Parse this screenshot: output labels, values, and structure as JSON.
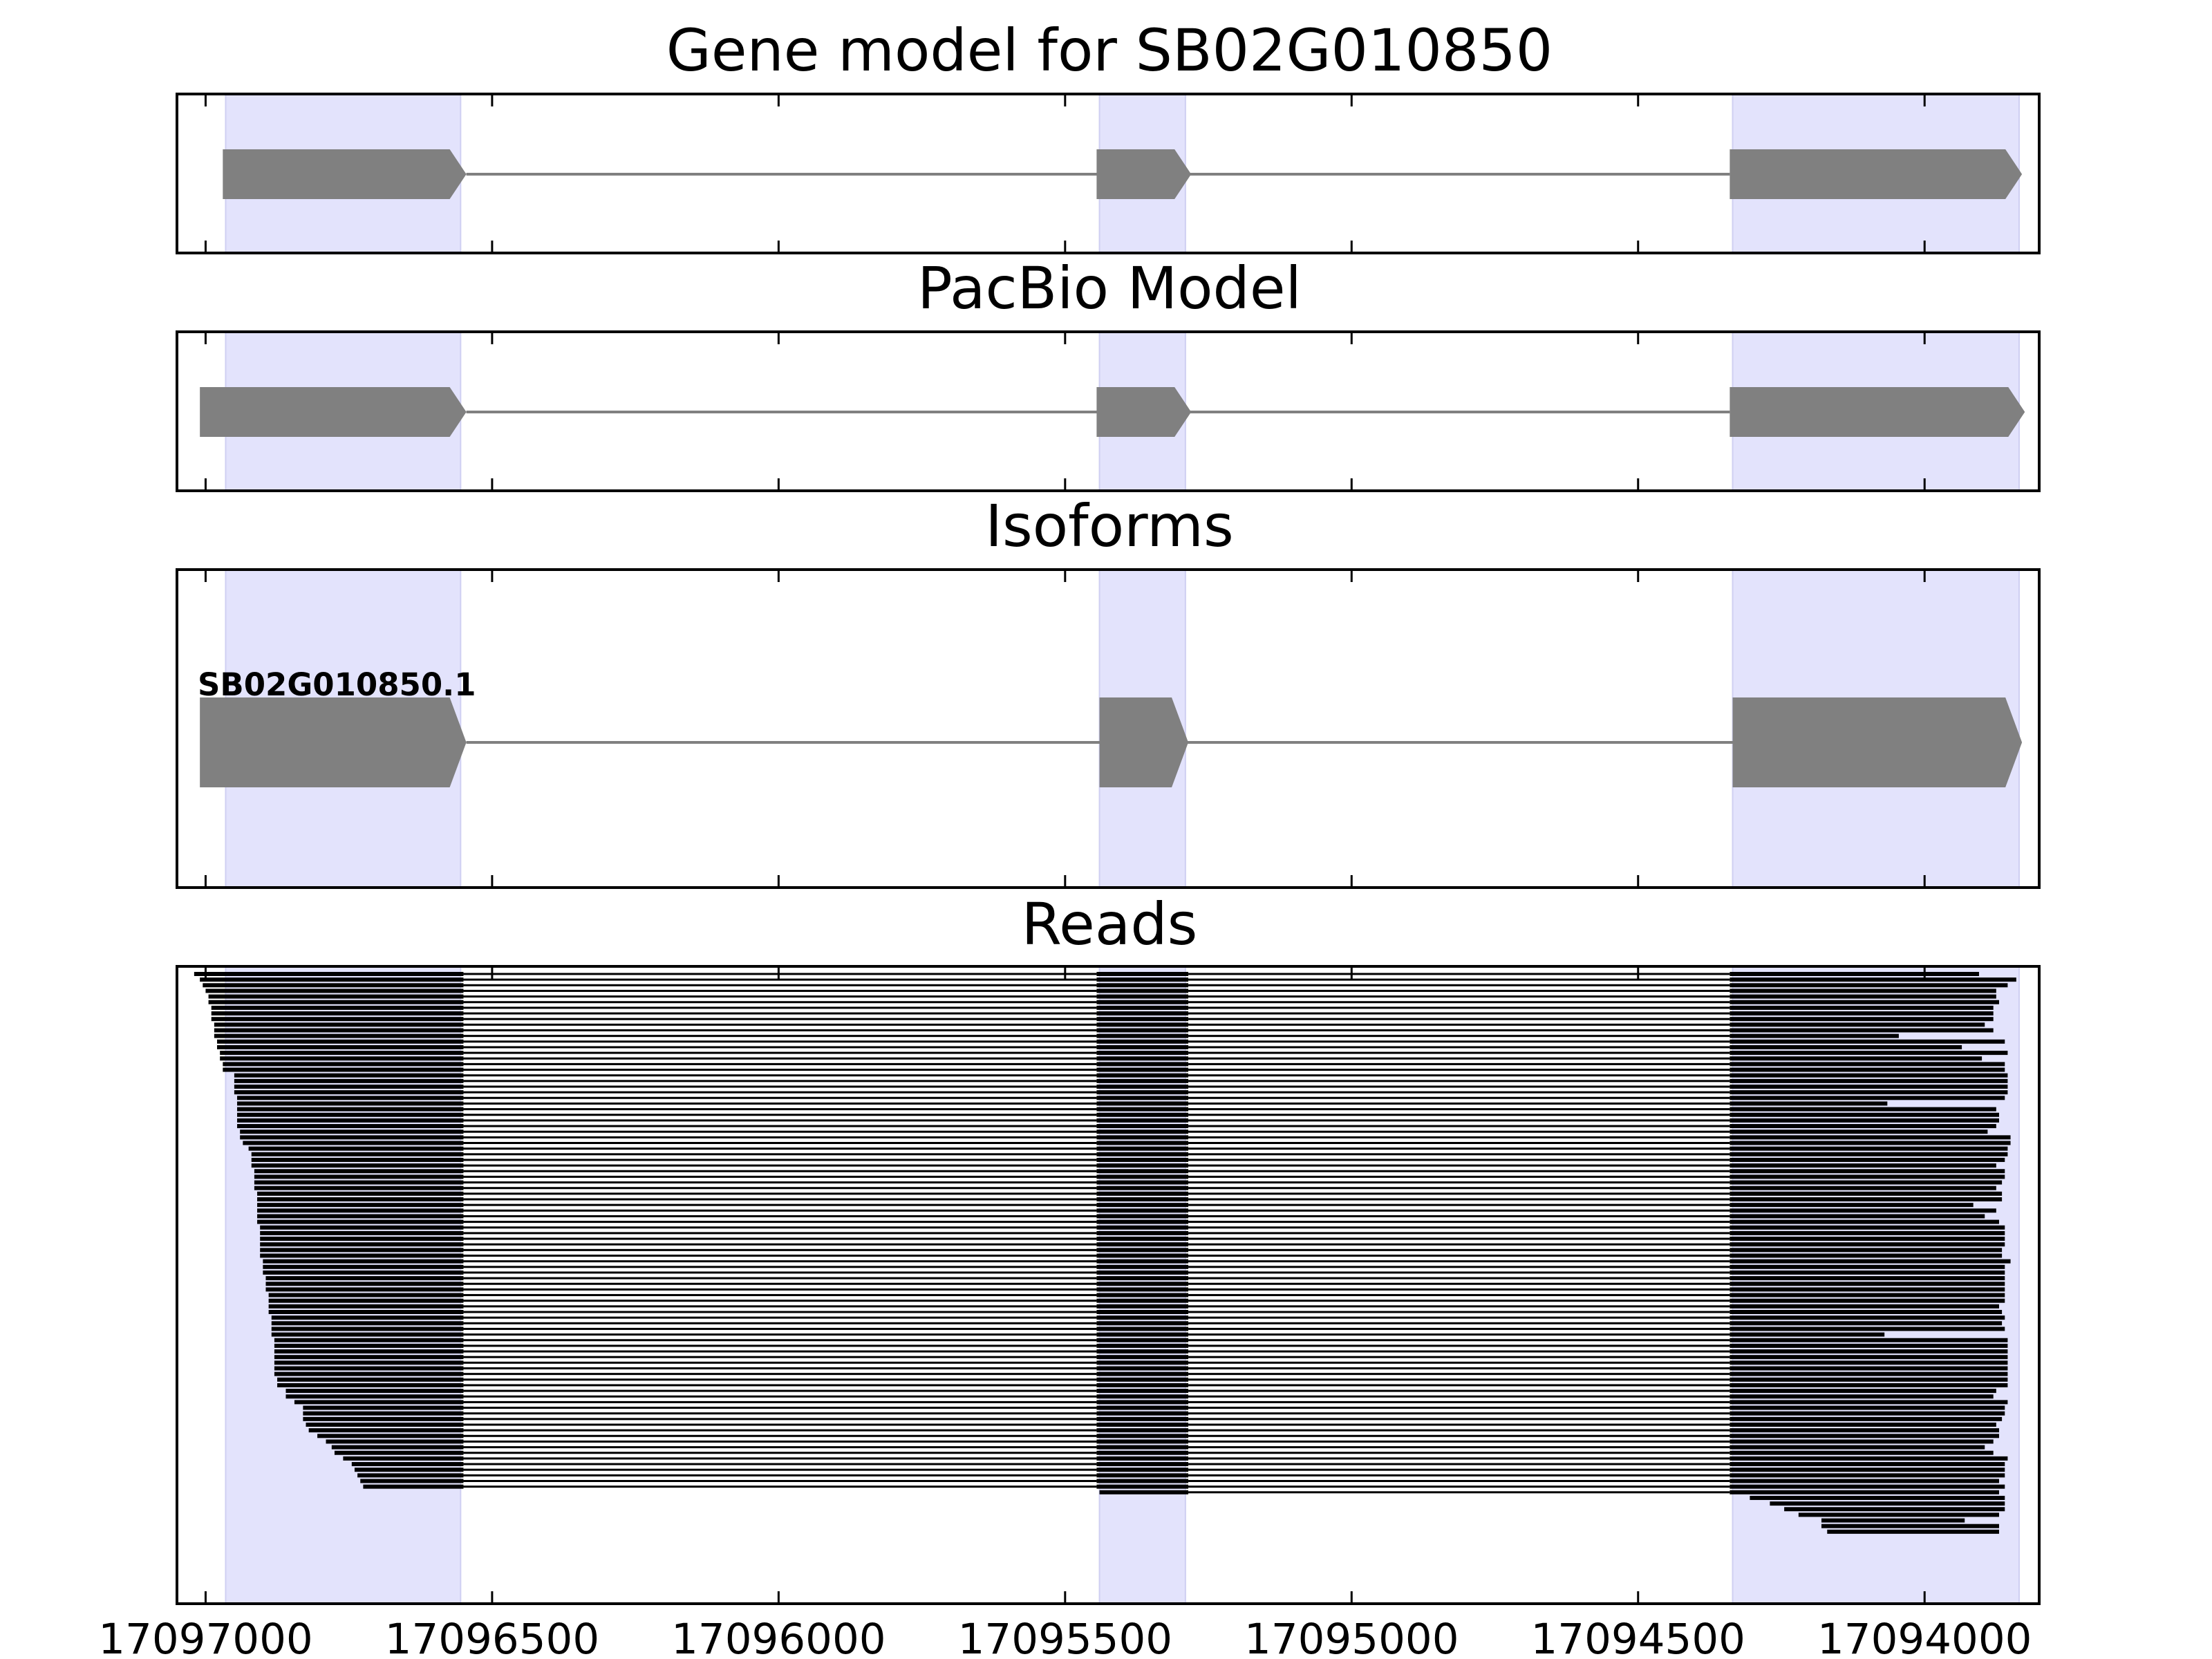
{
  "chart_data": {
    "type": "gene-model-tracks",
    "x_axis": {
      "range": [
        17097050,
        17093800
      ],
      "reversed": true,
      "ticks": [
        17097000,
        17096500,
        17096000,
        17095500,
        17095000,
        17094500,
        17094000
      ],
      "tick_labels": [
        "17097000",
        "17096500",
        "17096000",
        "17095500",
        "17095000",
        "17094500",
        "17094000"
      ]
    },
    "exon_highlights": [
      {
        "start": 17096965,
        "end": 17096555
      },
      {
        "start": 17095440,
        "end": 17095290
      },
      {
        "start": 17094335,
        "end": 17093835
      }
    ],
    "colors": {
      "highlight": "#e3e3fc",
      "exon": "#808080",
      "intron": "#808080",
      "read": "#000000"
    },
    "panels": [
      {
        "title": "Gene model for SB02G010850",
        "exons": [
          {
            "start": 17096970,
            "end": 17096545
          },
          {
            "start": 17095445,
            "end": 17095280
          },
          {
            "start": 17094340,
            "end": 17093830
          }
        ]
      },
      {
        "title": "PacBio Model",
        "exons": [
          {
            "start": 17097010,
            "end": 17096545
          },
          {
            "start": 17095445,
            "end": 17095280
          },
          {
            "start": 17094340,
            "end": 17093825
          }
        ]
      },
      {
        "title": "Isoforms",
        "isoforms": [
          {
            "name": "SB02G010850.1",
            "exons": [
              {
                "start": 17097010,
                "end": 17096545
              },
              {
                "start": 17095440,
                "end": 17095285
              },
              {
                "start": 17094335,
                "end": 17093830
              }
            ]
          }
        ]
      },
      {
        "title": "Reads",
        "exon2": {
          "start": 17095445,
          "end": 17095285
        },
        "exon3_start": 17094340,
        "exon1_end": 17096550,
        "reads": [
          [
            17097020,
            17093905
          ],
          [
            17097010,
            17093840
          ],
          [
            17097005,
            17093855
          ],
          [
            17097000,
            17093875
          ],
          [
            17096995,
            17093875
          ],
          [
            17096995,
            17093870
          ],
          [
            17096990,
            17093880
          ],
          [
            17096990,
            17093880
          ],
          [
            17096990,
            17093880
          ],
          [
            17096985,
            17093895
          ],
          [
            17096985,
            17093880
          ],
          [
            17096985,
            17094045
          ],
          [
            17096980,
            17093860
          ],
          [
            17096980,
            17093935
          ],
          [
            17096975,
            17093855
          ],
          [
            17096975,
            17093900
          ],
          [
            17096970,
            17093860
          ],
          [
            17096970,
            17093860
          ],
          [
            17096950,
            17093855
          ],
          [
            17096950,
            17093855
          ],
          [
            17096950,
            17093855
          ],
          [
            17096950,
            17093855
          ],
          [
            17096945,
            17093860
          ],
          [
            17096945,
            17094065
          ],
          [
            17096945,
            17093875
          ],
          [
            17096945,
            17093870
          ],
          [
            17096945,
            17093870
          ],
          [
            17096945,
            17093875
          ],
          [
            17096940,
            17093890
          ],
          [
            17096940,
            17093850
          ],
          [
            17096935,
            17093850
          ],
          [
            17096925,
            17093855
          ],
          [
            17096920,
            17093855
          ],
          [
            17096920,
            17093860
          ],
          [
            17096920,
            17093875
          ],
          [
            17096915,
            17093860
          ],
          [
            17096915,
            17093860
          ],
          [
            17096915,
            17093865
          ],
          [
            17096915,
            17093875
          ],
          [
            17096910,
            17093865
          ],
          [
            17096910,
            17093865
          ],
          [
            17096910,
            17093915
          ],
          [
            17096910,
            17093875
          ],
          [
            17096910,
            17093895
          ],
          [
            17096910,
            17093870
          ],
          [
            17096905,
            17093860
          ],
          [
            17096905,
            17093860
          ],
          [
            17096905,
            17093860
          ],
          [
            17096905,
            17093860
          ],
          [
            17096905,
            17093865
          ],
          [
            17096905,
            17093865
          ],
          [
            17096900,
            17093850
          ],
          [
            17096900,
            17093860
          ],
          [
            17096900,
            17093860
          ],
          [
            17096895,
            17093860
          ],
          [
            17096895,
            17093860
          ],
          [
            17096895,
            17093860
          ],
          [
            17096890,
            17093860
          ],
          [
            17096890,
            17093860
          ],
          [
            17096890,
            17093870
          ],
          [
            17096890,
            17093865
          ],
          [
            17096885,
            17093860
          ],
          [
            17096885,
            17093865
          ],
          [
            17096885,
            17093860
          ],
          [
            17096885,
            17094070
          ],
          [
            17096880,
            17093855
          ],
          [
            17096880,
            17093855
          ],
          [
            17096880,
            17093855
          ],
          [
            17096880,
            17093855
          ],
          [
            17096880,
            17093855
          ],
          [
            17096880,
            17093855
          ],
          [
            17096880,
            17093855
          ],
          [
            17096875,
            17093855
          ],
          [
            17096875,
            17093855
          ],
          [
            17096860,
            17093875
          ],
          [
            17096860,
            17093880
          ],
          [
            17096845,
            17093855
          ],
          [
            17096830,
            17093860
          ],
          [
            17096830,
            17093860
          ],
          [
            17096830,
            17093865
          ],
          [
            17096825,
            17093875
          ],
          [
            17096820,
            17093870
          ],
          [
            17096805,
            17093870
          ],
          [
            17096790,
            17093880
          ],
          [
            17096780,
            17093895
          ],
          [
            17096775,
            17093880
          ],
          [
            17096760,
            17093855
          ],
          [
            17096745,
            17093860
          ],
          [
            17096740,
            17093860
          ],
          [
            17096735,
            17093860
          ],
          [
            17096730,
            17093870
          ],
          [
            17096725,
            17093860
          ],
          [
            17095440,
            17093870
          ],
          [
            17094305,
            17093860
          ],
          [
            17094270,
            17093860
          ],
          [
            17094245,
            17093860
          ],
          [
            17094220,
            17093870
          ],
          [
            17094180,
            17093930
          ],
          [
            17094180,
            17093870
          ],
          [
            17094170,
            17093870
          ]
        ]
      }
    ]
  }
}
